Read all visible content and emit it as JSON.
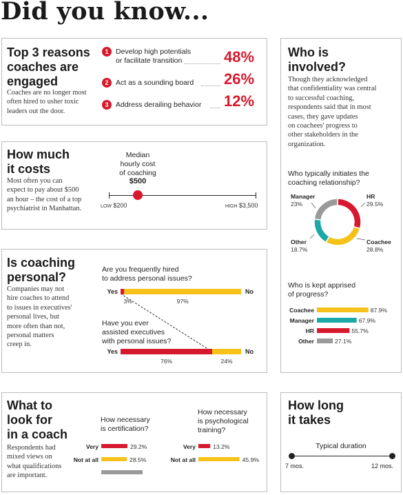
{
  "page_title": "Did you know...",
  "reasons": {
    "title": "Top 3 reasons coaches are engaged",
    "title_lines": [
      "Top 3 reasons",
      "coaches are",
      "engaged"
    ],
    "desc_lines": [
      "Coaches are no longer most",
      "often hired to usher toxic",
      "leaders out the door."
    ],
    "items": [
      {
        "num": "1",
        "lines": [
          "Develop high potentials",
          "or facilitate transition"
        ],
        "pct": "48%"
      },
      {
        "num": "2",
        "lines": [
          "Act as a sounding board"
        ],
        "pct": "26%"
      },
      {
        "num": "3",
        "lines": [
          "Address derailing behavior"
        ],
        "pct": "12%"
      }
    ]
  },
  "cost": {
    "title_lines": [
      "How much",
      "it costs"
    ],
    "desc_lines": [
      "Most often you can",
      "expect to pay about $500",
      "an hour – the cost of a top",
      "psychiatrist in Manhattan."
    ],
    "median_lines": [
      "Median",
      "hourly cost",
      "of coaching"
    ],
    "median_value": "$500",
    "low_label": "LOW",
    "low_value": "$200",
    "high_label": "HIGH",
    "high_value": "$3,500"
  },
  "personal": {
    "title_lines": [
      "Is coaching",
      "personal?"
    ],
    "desc_lines": [
      "Companies may not",
      "hire coaches to attend",
      "to issues in executives'",
      "personal lives, but",
      "more often than not,",
      "personal matters",
      "creep in."
    ],
    "q1_lines": [
      "Are you frequently hired",
      "to address personal issues?"
    ],
    "q2_lines": [
      "Have you ever",
      "assisted executives",
      "with personal issues?"
    ],
    "yes_label": "Yes",
    "no_label": "No"
  },
  "lookfor": {
    "title_lines": [
      "What to",
      "look for",
      "in a coach"
    ],
    "desc_lines": [
      "Respondents had",
      "mixed views on",
      "what qualifications",
      "are important."
    ],
    "q1_lines": [
      "How necessary",
      "is certification?"
    ],
    "q2_lines": [
      "How necessary",
      "is psychological",
      "training?"
    ]
  },
  "involved": {
    "title_lines": [
      "Who is",
      "involved?"
    ],
    "desc_lines": [
      "Though they acknowledged",
      "that confidentiality was central",
      "to successful coaching,",
      "respondents said that in most",
      "cases, they gave updates",
      "on coachees' progress to",
      "other stakeholders in the",
      "organization."
    ],
    "q1_lines": [
      "Who typically initiates the",
      "coaching relationship?"
    ],
    "q2_lines": [
      "Who is kept apprised",
      "of progress?"
    ]
  },
  "duration": {
    "title_lines": [
      "How long",
      "it takes"
    ],
    "label": "Typical duration",
    "min": "7 mos.",
    "max": "12 mos."
  },
  "colors": {
    "red": "#d7192d",
    "yellow": "#f6c21a",
    "teal": "#1aa9a6",
    "grey": "#9a9a9a"
  },
  "chart_data": [
    {
      "type": "bar",
      "title": "Top 3 reasons coaches are engaged",
      "categories": [
        "Develop high potentials or facilitate transition",
        "Act as a sounding board",
        "Address derailing behavior"
      ],
      "values": [
        48,
        26,
        12
      ],
      "unit": "%"
    },
    {
      "type": "range",
      "title": "Median hourly cost of coaching",
      "median": 500,
      "low": 200,
      "high": 3500,
      "unit": "$"
    },
    {
      "type": "bar",
      "stacked": true,
      "title": "Are you frequently hired to address personal issues?",
      "series": [
        {
          "name": "Yes",
          "values": [
            3
          ],
          "labels": [
            "3%"
          ]
        },
        {
          "name": "No",
          "values": [
            97
          ],
          "labels": [
            "97%"
          ]
        }
      ]
    },
    {
      "type": "bar",
      "stacked": true,
      "title": "Have you ever assisted executives with personal issues?",
      "series": [
        {
          "name": "Yes",
          "values": [
            76
          ],
          "labels": [
            "76%"
          ]
        },
        {
          "name": "No",
          "values": [
            24
          ],
          "labels": [
            "24%"
          ]
        }
      ]
    },
    {
      "type": "pie",
      "donut": true,
      "title": "Who typically initiates the coaching relationship?",
      "categories": [
        "HR",
        "Coachee",
        "Other",
        "Manager"
      ],
      "values": [
        29.5,
        28.8,
        18.7,
        23
      ],
      "labels": [
        "29.5%",
        "28.8%",
        "18.7%",
        "23%"
      ],
      "colors": [
        "#d7192d",
        "#f6c21a",
        "#1aa9a6",
        "#9a9a9a"
      ]
    },
    {
      "type": "bar",
      "orientation": "horizontal",
      "title": "Who is kept apprised of progress?",
      "categories": [
        "Coachee",
        "Manager",
        "HR",
        "Other"
      ],
      "values": [
        87.9,
        67.9,
        55.7,
        27.1
      ],
      "labels": [
        "87.9%",
        "67.9%",
        "55.7%",
        "27.1%"
      ],
      "colors": [
        "#f6c21a",
        "#1aa9a6",
        "#d7192d",
        "#9a9a9a"
      ]
    },
    {
      "type": "bar",
      "orientation": "horizontal",
      "title": "How necessary is certification?",
      "categories": [
        "Very",
        "Not at all",
        ""
      ],
      "values": [
        29.2,
        28.5,
        null
      ],
      "labels": [
        "29.2%",
        "28.5%",
        ""
      ],
      "colors": [
        "#d7192d",
        "#f6c21a",
        "#9a9a9a"
      ]
    },
    {
      "type": "bar",
      "orientation": "horizontal",
      "title": "How necessary is psychological training?",
      "categories": [
        "Very",
        "Not at all"
      ],
      "values": [
        13.2,
        45.9
      ],
      "labels": [
        "13.2%",
        "45.9%"
      ],
      "colors": [
        "#d7192d",
        "#f6c21a"
      ]
    },
    {
      "type": "range",
      "title": "Typical duration",
      "low": 7,
      "high": 12,
      "unit": "mos."
    }
  ]
}
